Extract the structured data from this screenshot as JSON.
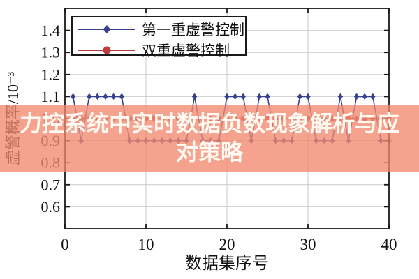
{
  "page": {
    "background": "#ffffff"
  },
  "overlay": {
    "full_title": "力控系统中实时数据负数现象解析与应对策略",
    "title_line1": "力控系统中实时数据负数现象解析与应",
    "title_line2": "对策略",
    "band_color": "rgba(242,137,112,0.78)",
    "text_color": "#fffaf2"
  },
  "chart_data": {
    "type": "line",
    "title": "",
    "xlabel": "数据集序号",
    "ylabel": "虚警概率/10⁻³",
    "xlim": [
      0,
      40
    ],
    "ylim": [
      0.5,
      1.5
    ],
    "xticks": [
      0,
      10,
      20,
      30,
      40
    ],
    "yticks": [
      0.6,
      0.7,
      0.8,
      0.9,
      1.0,
      1.1,
      1.2,
      1.3,
      1.4
    ],
    "grid": true,
    "grid_color": "#cbcbcb",
    "spine_color": "#1a1a1a",
    "legend_position": "top-left",
    "x": [
      1,
      2,
      3,
      4,
      5,
      6,
      7,
      8,
      9,
      10,
      11,
      12,
      13,
      14,
      15,
      16,
      17,
      18,
      19,
      20,
      21,
      22,
      23,
      24,
      25,
      26,
      27,
      28,
      29,
      30,
      31,
      32,
      33,
      34,
      35,
      36,
      37,
      38,
      39,
      40
    ],
    "series": [
      {
        "name": "第一重虚警控制",
        "color": "#36418f",
        "marker": "diamond",
        "values": [
          1.1,
          0.9,
          1.1,
          1.1,
          1.1,
          1.1,
          1.1,
          0.9,
          0.9,
          0.9,
          0.9,
          0.9,
          0.9,
          0.9,
          0.9,
          1.1,
          0.9,
          0.9,
          0.9,
          1.1,
          1.1,
          1.1,
          0.9,
          1.1,
          1.1,
          0.9,
          0.9,
          0.9,
          1.1,
          1.1,
          0.9,
          0.9,
          0.9,
          1.1,
          0.9,
          1.1,
          1.1,
          1.1,
          0.9,
          0.9
        ]
      },
      {
        "name": "双重虚警控制",
        "color": "#be3b40",
        "marker": "circle",
        "values": [
          1.0,
          1.0,
          1.0,
          1.0,
          1.0,
          1.0,
          1.0,
          1.0,
          1.0,
          1.0,
          1.0,
          1.0,
          1.0,
          1.0,
          1.0,
          1.0,
          1.0,
          1.0,
          1.0,
          1.0,
          1.0,
          1.0,
          1.0,
          1.0,
          1.0,
          1.0,
          1.0,
          1.0,
          1.0,
          1.0,
          1.0,
          1.0,
          1.0,
          1.0,
          1.0,
          1.0,
          1.0,
          1.0,
          1.0,
          1.0
        ]
      }
    ]
  }
}
